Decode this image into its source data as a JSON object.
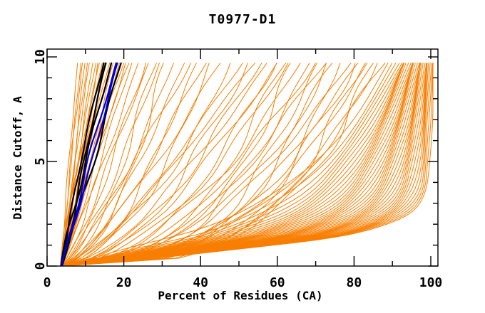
{
  "chart_data": {
    "type": "line",
    "title": "T0977-D1",
    "xlabel": "Percent of Residues (CA)",
    "ylabel": "Distance Cutoff, A",
    "xlim": [
      0,
      100
    ],
    "ylim": [
      0,
      10
    ],
    "grid": false,
    "legend": "none",
    "x_ticks_major": [
      0,
      20,
      40,
      60,
      80,
      100
    ],
    "x_tick_labels": [
      "0",
      "20",
      "40",
      "60",
      "80",
      "100"
    ],
    "x_ticks_minor": [
      10,
      30,
      50,
      70,
      90
    ],
    "y_ticks_major": [
      0,
      5,
      10
    ],
    "y_tick_labels": [
      "0",
      "5",
      "10"
    ],
    "y_ticks_minor": [
      1,
      2,
      3,
      4,
      6,
      7,
      8,
      9
    ],
    "colors": {
      "frame": "#000000",
      "models_orange": "#F87E00",
      "highlight_black": "#000000",
      "highlight_blue": "#0000D8",
      "background": "#FFFFFF"
    },
    "curve_top_y": 9.7,
    "counts": {
      "orange_models": 104,
      "black_highlighted": 4,
      "blue_highlighted": 2
    },
    "series_groups": [
      {
        "name": "server-models-left-steep",
        "color_key": "models_orange",
        "stroke_width": 1,
        "curve_params_key": [
          "x_at_y0",
          "x_at_top",
          "shape_exponent",
          "wobble",
          "phase"
        ],
        "curves": [
          [
            3.6,
            7.9,
            1.05,
            0.25,
            0.3
          ],
          [
            3.8,
            8.6,
            0.95,
            0.3,
            1.1
          ],
          [
            3.5,
            9.2,
            1.1,
            0.35,
            2.0
          ],
          [
            3.9,
            9.8,
            0.9,
            0.3,
            2.9
          ],
          [
            3.6,
            10.5,
            1.0,
            0.4,
            3.8
          ],
          [
            3.8,
            11.2,
            1.15,
            0.35,
            4.7
          ],
          [
            3.5,
            11.9,
            0.95,
            0.4,
            5.6
          ],
          [
            3.7,
            12.5,
            1.05,
            0.35,
            0.8
          ],
          [
            3.9,
            13.1,
            0.9,
            0.45,
            1.7
          ],
          [
            3.6,
            13.6,
            1.1,
            0.4,
            2.6
          ]
        ]
      },
      {
        "name": "server-models-left-cluster",
        "color_key": "models_orange",
        "stroke_width": 1,
        "curves": [
          [
            3.7,
            14.2,
            1.0,
            0.5,
            0.5
          ],
          [
            3.9,
            14.9,
            0.92,
            0.45,
            1.4
          ],
          [
            3.6,
            15.5,
            1.08,
            0.5,
            2.3
          ],
          [
            3.8,
            16.1,
            0.97,
            0.55,
            3.2
          ],
          [
            3.6,
            16.8,
            1.12,
            0.5,
            4.1
          ],
          [
            3.9,
            17.4,
            0.9,
            0.55,
            5.0
          ],
          [
            3.7,
            18.1,
            1.05,
            0.5,
            5.9
          ],
          [
            3.8,
            18.8,
            0.95,
            0.6,
            0.2
          ],
          [
            3.6,
            19.6,
            1.1,
            0.55,
            1.0
          ],
          [
            3.9,
            20.4,
            0.93,
            0.6,
            1.9
          ],
          [
            3.7,
            21.2,
            1.02,
            0.6,
            2.8
          ],
          [
            3.8,
            22.0,
            0.9,
            0.65,
            3.7
          ]
        ]
      },
      {
        "name": "server-models-mid-fan",
        "color_key": "models_orange",
        "stroke_width": 1,
        "curves": [
          [
            3.8,
            23.5,
            0.85,
            0.9,
            0.4
          ],
          [
            3.6,
            25,
            0.7,
            1.2,
            1.3
          ],
          [
            3.9,
            26.5,
            0.9,
            1.0,
            2.2
          ],
          [
            3.7,
            28,
            0.6,
            1.4,
            3.1
          ],
          [
            3.8,
            29.5,
            0.8,
            1.1,
            4.0
          ],
          [
            3.6,
            31,
            0.55,
            1.5,
            4.9
          ],
          [
            3.9,
            33,
            0.75,
            1.2,
            5.8
          ],
          [
            3.7,
            35,
            0.62,
            1.6,
            0.6
          ],
          [
            3.8,
            37,
            0.85,
            1.1,
            1.5
          ],
          [
            3.6,
            39,
            0.58,
            1.7,
            2.4
          ],
          [
            3.9,
            41,
            0.72,
            1.3,
            3.3
          ],
          [
            3.7,
            43,
            0.55,
            1.8,
            4.2
          ],
          [
            3.8,
            45.5,
            0.8,
            1.2,
            5.1
          ],
          [
            3.6,
            48,
            0.6,
            1.9,
            6.0
          ],
          [
            3.9,
            50,
            0.7,
            1.4,
            0.9
          ],
          [
            3.7,
            52,
            0.52,
            2.0,
            1.8
          ],
          [
            3.8,
            54,
            0.78,
            1.3,
            2.7
          ],
          [
            3.6,
            55.5,
            0.58,
            1.9,
            3.6
          ]
        ]
      },
      {
        "name": "server-models-wide-fan",
        "color_key": "models_orange",
        "stroke_width": 1,
        "curves": [
          [
            3.8,
            57,
            0.65,
            1.5,
            0.3
          ],
          [
            3.6,
            58.5,
            0.45,
            2.0,
            1.2
          ],
          [
            3.9,
            60,
            0.6,
            1.6,
            2.1
          ],
          [
            3.7,
            61.5,
            0.4,
            2.1,
            3.0
          ],
          [
            3.8,
            63,
            0.55,
            1.7,
            3.9
          ],
          [
            3.6,
            64.5,
            0.38,
            2.2,
            4.8
          ],
          [
            3.9,
            66,
            0.52,
            1.8,
            5.7
          ],
          [
            3.7,
            67.5,
            0.36,
            2.2,
            0.5
          ],
          [
            3.8,
            69,
            0.5,
            1.8,
            1.4
          ],
          [
            3.6,
            70.5,
            0.34,
            2.3,
            2.3
          ],
          [
            3.9,
            72,
            0.48,
            1.9,
            3.2
          ],
          [
            3.7,
            73.5,
            0.33,
            2.3,
            4.1
          ],
          [
            3.8,
            75,
            0.46,
            1.9,
            5.0
          ],
          [
            3.6,
            76.5,
            0.32,
            2.4,
            5.9
          ],
          [
            3.9,
            78,
            0.44,
            2.0,
            0.7
          ],
          [
            3.7,
            79.5,
            0.31,
            2.4,
            1.6
          ],
          [
            3.8,
            81,
            0.42,
            2.0,
            2.5
          ],
          [
            3.6,
            82.5,
            0.3,
            2.4,
            3.4
          ],
          [
            3.9,
            84,
            0.4,
            2.1,
            4.3
          ],
          [
            3.7,
            85.5,
            0.3,
            2.3,
            5.2
          ],
          [
            3.8,
            86.5,
            0.38,
            2.1,
            6.1
          ],
          [
            3.6,
            87.5,
            0.35,
            2.2,
            2.9
          ]
        ]
      },
      {
        "name": "highlighted-black",
        "color_key": "highlight_black",
        "stroke_width": 2.2,
        "curves": [
          [
            3.7,
            14.4,
            1.08,
            0.55,
            1.0
          ],
          [
            3.8,
            15.3,
            1.0,
            0.6,
            2.5
          ],
          [
            3.6,
            16.9,
            1.12,
            0.65,
            4.0
          ],
          [
            3.9,
            19.3,
            0.98,
            0.7,
            5.5
          ]
        ]
      },
      {
        "name": "highlighted-blue",
        "color_key": "highlight_blue",
        "stroke_width": 2.2,
        "curves": [
          [
            3.7,
            18.0,
            1.05,
            0.6,
            2.0
          ],
          [
            3.8,
            18.7,
            1.0,
            0.65,
            4.6
          ]
        ]
      }
    ],
    "dense_band": {
      "name": "server-models-right-band",
      "color_key": "models_orange",
      "stroke_width": 1,
      "count": 42,
      "y_grid": [
        0,
        0.4,
        0.8,
        1.3,
        1.8,
        2.5,
        3.5,
        5,
        7,
        9.7
      ],
      "outer_envelope_x": [
        4.5,
        30,
        49,
        74,
        86,
        95,
        99,
        100,
        100.3,
        100.5
      ],
      "inner_envelope_x": [
        4,
        12,
        20,
        31,
        40,
        50,
        60,
        70,
        80,
        89.5
      ]
    }
  }
}
